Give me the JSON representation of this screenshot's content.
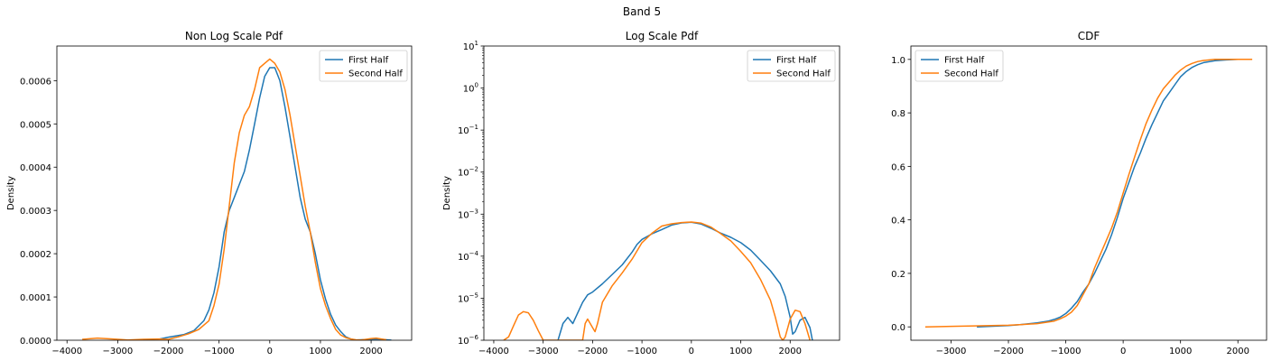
{
  "figure": {
    "suptitle": "Band 5"
  },
  "colors": {
    "first_half": "#1f77b4",
    "second_half": "#ff7f0e",
    "axis": "#000000",
    "legend_border": "#cccccc"
  },
  "chart_data": [
    {
      "type": "line",
      "title": "Non Log Scale Pdf",
      "xlabel": "",
      "ylabel": "Density",
      "yscale": "linear",
      "xlim": [
        -4200,
        2800
      ],
      "ylim": [
        0,
        0.00068
      ],
      "xticks": [
        -4000,
        -3000,
        -2000,
        -1000,
        0,
        1000,
        2000
      ],
      "xtick_labels": [
        "−4000",
        "−3000",
        "−2000",
        "−1000",
        "0",
        "1000",
        "2000"
      ],
      "yticks": [
        0,
        0.0001,
        0.0002,
        0.0003,
        0.0004,
        0.0005,
        0.0006
      ],
      "ytick_labels": [
        "0.0000",
        "0.0001",
        "0.0002",
        "0.0003",
        "0.0004",
        "0.0005",
        "0.0006"
      ],
      "legend": {
        "position": "upper right",
        "entries": [
          "First Half",
          "Second Half"
        ]
      },
      "series": [
        {
          "name": "First Half",
          "color": "#1f77b4",
          "x": [
            -2500,
            -2200,
            -2000,
            -1700,
            -1500,
            -1300,
            -1200,
            -1100,
            -1000,
            -900,
            -800,
            -700,
            -600,
            -500,
            -400,
            -300,
            -200,
            -100,
            0,
            100,
            200,
            300,
            400,
            500,
            600,
            700,
            800,
            900,
            1000,
            1100,
            1200,
            1300,
            1400,
            1500,
            1600,
            1700,
            1800,
            1900,
            2000,
            2100,
            2200,
            2300,
            2400
          ],
          "y": [
            5e-07,
            2e-06,
            7e-06,
            1.3e-05,
            2.2e-05,
            4.5e-05,
            7e-05,
            0.00011,
            0.00017,
            0.00025,
            0.0003,
            0.00033,
            0.00036,
            0.00039,
            0.00044,
            0.0005,
            0.00056,
            0.00061,
            0.00063,
            0.00063,
            0.0006,
            0.00054,
            0.00047,
            0.0004,
            0.00033,
            0.00028,
            0.00025,
            0.0002,
            0.00014,
            9.5e-05,
            6e-05,
            3.5e-05,
            2e-05,
            8e-06,
            3e-06,
            5e-07,
            1e-06,
            1.5e-06,
            2e-06,
            3e-06,
            2e-06,
            1e-06,
            3e-07
          ]
        },
        {
          "name": "Second Half",
          "color": "#ff7f0e",
          "x": [
            -3700,
            -3400,
            -3100,
            -2800,
            -2500,
            -2200,
            -2000,
            -1800,
            -1600,
            -1400,
            -1200,
            -1100,
            -1000,
            -900,
            -800,
            -700,
            -600,
            -500,
            -400,
            -300,
            -200,
            -100,
            0,
            100,
            200,
            300,
            400,
            500,
            600,
            700,
            800,
            900,
            1000,
            1100,
            1200,
            1300,
            1400,
            1500,
            1600,
            1700,
            1800,
            1900,
            2000,
            2100,
            2200,
            2300
          ],
          "y": [
            2e-06,
            5e-06,
            3e-06,
            5e-07,
            2e-06,
            3e-06,
            2e-06,
            8e-06,
            1.5e-05,
            2.5e-05,
            4.5e-05,
            8e-05,
            0.00013,
            0.00021,
            0.00031,
            0.00041,
            0.00048,
            0.00052,
            0.00054,
            0.00058,
            0.00063,
            0.00064,
            0.00065,
            0.00064,
            0.00062,
            0.00058,
            0.00052,
            0.00045,
            0.00038,
            0.00031,
            0.00025,
            0.00018,
            0.00012,
            8e-05,
            5e-05,
            2.5e-05,
            1.2e-05,
            6e-06,
            3e-06,
            1e-06,
            5e-07,
            2e-06,
            4e-06,
            5e-06,
            3e-06,
            1e-06
          ]
        }
      ]
    },
    {
      "type": "line",
      "title": "Log Scale Pdf",
      "xlabel": "",
      "ylabel": "Density",
      "yscale": "log",
      "xlim": [
        -4200,
        3000
      ],
      "ylim": [
        1e-06,
        10
      ],
      "xticks": [
        -4000,
        -3000,
        -2000,
        -1000,
        0,
        1000,
        2000
      ],
      "xtick_labels": [
        "−4000",
        "−3000",
        "−2000",
        "−1000",
        "0",
        "1000",
        "2000"
      ],
      "yticks": [
        1e-06,
        1e-05,
        0.0001,
        0.001,
        0.01,
        0.1,
        1,
        10
      ],
      "ytick_exponents": [
        "−6",
        "−5",
        "−4",
        "−3",
        "−2",
        "−1",
        "0",
        "1"
      ],
      "legend": {
        "position": "upper right",
        "entries": [
          "First Half",
          "Second Half"
        ]
      },
      "series": [
        {
          "name": "First Half",
          "color": "#1f77b4",
          "x": [
            -2700,
            -2600,
            -2500,
            -2400,
            -2300,
            -2200,
            -2100,
            -2000,
            -1800,
            -1600,
            -1400,
            -1200,
            -1100,
            -1000,
            -800,
            -600,
            -400,
            -200,
            0,
            200,
            400,
            600,
            800,
            1000,
            1200,
            1400,
            1600,
            1800,
            1900,
            2000,
            2050,
            2100,
            2200,
            2300,
            2400,
            2450
          ],
          "y": [
            1e-06,
            2.5e-06,
            3.5e-06,
            2.5e-06,
            4.5e-06,
            8e-06,
            1.2e-05,
            1.4e-05,
            2.2e-05,
            3.7e-05,
            6.2e-05,
            0.000125,
            0.00019,
            0.00025,
            0.00034,
            0.00043,
            0.00055,
            0.00062,
            0.00064,
            0.00058,
            0.00046,
            0.00035,
            0.00028,
            0.00021,
            0.00014,
            8e-05,
            4.5e-05,
            2.2e-05,
            1.1e-05,
            3.5e-06,
            1.4e-06,
            1.6e-06,
            3e-06,
            3.5e-06,
            2e-06,
            1e-06
          ]
        },
        {
          "name": "Second Half",
          "color": "#ff7f0e",
          "x": [
            -3800,
            -3700,
            -3600,
            -3500,
            -3400,
            -3300,
            -3200,
            -3100,
            -3000,
            -2950,
            -2200,
            -2150,
            -2100,
            -2000,
            -1950,
            -1900,
            -1800,
            -1600,
            -1400,
            -1200,
            -1000,
            -800,
            -600,
            -400,
            -200,
            0,
            200,
            400,
            600,
            800,
            1000,
            1200,
            1400,
            1600,
            1700,
            1800,
            1850,
            1900,
            2000,
            2100,
            2200,
            2300,
            2400
          ],
          "y": [
            1e-06,
            1.2e-06,
            2.2e-06,
            4e-06,
            4.8e-06,
            4.5e-06,
            3e-06,
            1.7e-06,
            1e-06,
            1e-06,
            1e-06,
            2.5e-06,
            3.2e-06,
            2e-06,
            1.6e-06,
            2.5e-06,
            8e-06,
            2e-05,
            4e-05,
            8.5e-05,
            0.00021,
            0.00035,
            0.00052,
            0.00059,
            0.00063,
            0.00065,
            0.00061,
            0.00049,
            0.00034,
            0.00023,
            0.00013,
            7e-05,
            2.8e-05,
            9e-06,
            3.5e-06,
            1.2e-06,
            1e-06,
            1.2e-06,
            3.2e-06,
            5.2e-06,
            4.8e-06,
            2.5e-06,
            1e-06
          ]
        }
      ]
    },
    {
      "type": "line",
      "title": "CDF",
      "xlabel": "",
      "ylabel": "",
      "yscale": "linear",
      "xlim": [
        -3700,
        2500
      ],
      "ylim": [
        -0.05,
        1.05
      ],
      "xticks": [
        -3000,
        -2000,
        -1000,
        0,
        1000,
        2000
      ],
      "xtick_labels": [
        "−3000",
        "−2000",
        "−1000",
        "0",
        "1000",
        "2000"
      ],
      "yticks": [
        0,
        0.2,
        0.4,
        0.6,
        0.8,
        1.0
      ],
      "ytick_labels": [
        "0.0",
        "0.2",
        "0.4",
        "0.6",
        "0.8",
        "1.0"
      ],
      "legend": {
        "position": "upper left",
        "entries": [
          "First Half",
          "Second Half"
        ]
      },
      "series": [
        {
          "name": "First Half",
          "color": "#1f77b4",
          "x": [
            -2550,
            -2000,
            -1800,
            -1500,
            -1300,
            -1200,
            -1100,
            -1000,
            -900,
            -800,
            -700,
            -600,
            -500,
            -400,
            -300,
            -200,
            -100,
            0,
            100,
            200,
            300,
            400,
            500,
            600,
            700,
            800,
            900,
            1000,
            1100,
            1200,
            1300,
            1400,
            1600,
            1800,
            2000,
            2200
          ],
          "y": [
            0.0,
            0.005,
            0.008,
            0.015,
            0.022,
            0.028,
            0.036,
            0.05,
            0.07,
            0.095,
            0.13,
            0.16,
            0.2,
            0.245,
            0.29,
            0.345,
            0.41,
            0.48,
            0.54,
            0.6,
            0.65,
            0.705,
            0.755,
            0.8,
            0.845,
            0.875,
            0.905,
            0.935,
            0.955,
            0.97,
            0.98,
            0.988,
            0.995,
            0.998,
            1.0,
            1.0
          ]
        },
        {
          "name": "Second Half",
          "color": "#ff7f0e",
          "x": [
            -3450,
            -3000,
            -2500,
            -2000,
            -1800,
            -1500,
            -1300,
            -1200,
            -1100,
            -1000,
            -900,
            -800,
            -700,
            -600,
            -500,
            -400,
            -300,
            -200,
            -100,
            0,
            100,
            200,
            300,
            400,
            500,
            600,
            700,
            800,
            900,
            1000,
            1100,
            1200,
            1300,
            1400,
            1500,
            1600,
            1800,
            2000,
            2250
          ],
          "y": [
            0.0,
            0.002,
            0.004,
            0.006,
            0.008,
            0.012,
            0.018,
            0.022,
            0.03,
            0.04,
            0.055,
            0.08,
            0.12,
            0.16,
            0.22,
            0.27,
            0.32,
            0.37,
            0.43,
            0.5,
            0.57,
            0.635,
            0.7,
            0.76,
            0.81,
            0.855,
            0.89,
            0.915,
            0.94,
            0.96,
            0.975,
            0.985,
            0.992,
            0.996,
            0.998,
            1.0,
            1.0,
            1.0,
            1.0
          ]
        }
      ]
    }
  ]
}
